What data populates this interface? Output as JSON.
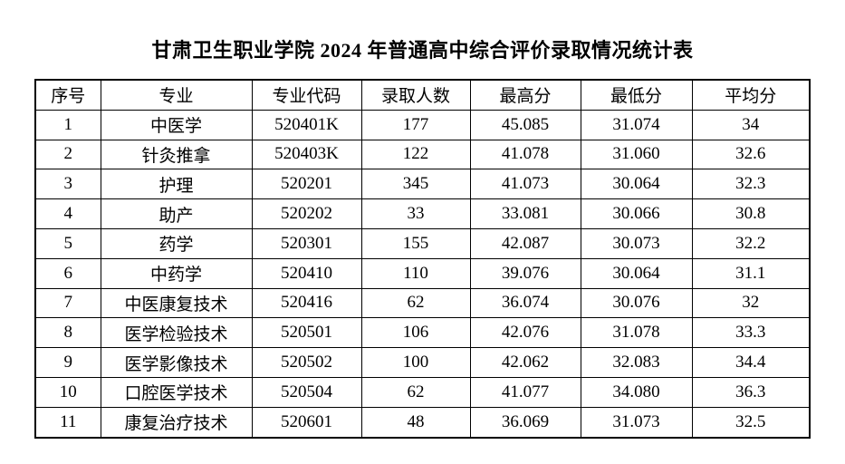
{
  "title": "甘肃卫生职业学院 2024 年普通高中综合评价录取情况统计表",
  "table": {
    "headers": [
      "序号",
      "专业",
      "专业代码",
      "录取人数",
      "最高分",
      "最低分",
      "平均分"
    ],
    "rows": [
      [
        "1",
        "中医学",
        "520401K",
        "177",
        "45.085",
        "31.074",
        "34"
      ],
      [
        "2",
        "针灸推拿",
        "520403K",
        "122",
        "41.078",
        "31.060",
        "32.6"
      ],
      [
        "3",
        "护理",
        "520201",
        "345",
        "41.073",
        "30.064",
        "32.3"
      ],
      [
        "4",
        "助产",
        "520202",
        "33",
        "33.081",
        "30.066",
        "30.8"
      ],
      [
        "5",
        "药学",
        "520301",
        "155",
        "42.087",
        "30.073",
        "32.2"
      ],
      [
        "6",
        "中药学",
        "520410",
        "110",
        "39.076",
        "30.064",
        "31.1"
      ],
      [
        "7",
        "中医康复技术",
        "520416",
        "62",
        "36.074",
        "30.076",
        "32"
      ],
      [
        "8",
        "医学检验技术",
        "520501",
        "106",
        "42.076",
        "31.078",
        "33.3"
      ],
      [
        "9",
        "医学影像技术",
        "520502",
        "100",
        "42.062",
        "32.083",
        "34.4"
      ],
      [
        "10",
        "口腔医学技术",
        "520504",
        "62",
        "41.077",
        "34.080",
        "36.3"
      ],
      [
        "11",
        "康复治疗技术",
        "520601",
        "48",
        "36.069",
        "31.073",
        "32.5"
      ]
    ]
  }
}
